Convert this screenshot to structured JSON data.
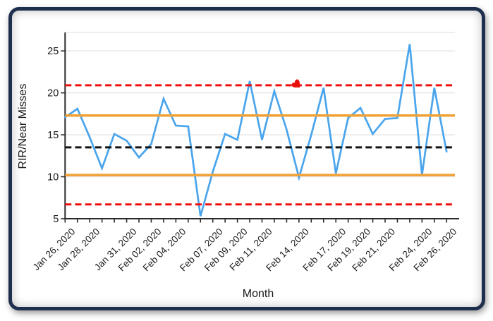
{
  "frame": {
    "border_color": "#1e2f4d",
    "background": "#ffffff"
  },
  "axis": {
    "line_color": "#2b2b2b",
    "grid_color": "#e8e8e8",
    "text_color": "#1b1b1b"
  },
  "chart_data": {
    "type": "line",
    "title": "",
    "xlabel": "Month",
    "ylabel": "RIR/Near Misses",
    "ylim": [
      5,
      27.2
    ],
    "yticks": [
      5,
      10,
      15,
      20,
      25
    ],
    "grid": true,
    "legend": "none",
    "n_points": 32,
    "x_tick_labels": [
      {
        "index": 0,
        "label": "Jan 26, 2020"
      },
      {
        "index": 2,
        "label": "Jan 28, 2020"
      },
      {
        "index": 5,
        "label": "Jan 31, 2020"
      },
      {
        "index": 7,
        "label": "Feb 02, 2020"
      },
      {
        "index": 9,
        "label": "Feb 04, 2020"
      },
      {
        "index": 12,
        "label": "Feb 07, 2020"
      },
      {
        "index": 14,
        "label": "Feb 09, 2020"
      },
      {
        "index": 16,
        "label": "Feb 11, 2020"
      },
      {
        "index": 19,
        "label": "Feb 14, 2020"
      },
      {
        "index": 22,
        "label": "Feb 17, 2020"
      },
      {
        "index": 24,
        "label": "Feb 19, 2020"
      },
      {
        "index": 26,
        "label": "Feb 21, 2020"
      },
      {
        "index": 29,
        "label": "Feb 24, 2020"
      },
      {
        "index": 31,
        "label": "Feb 26, 2020"
      }
    ],
    "series": [
      {
        "name": "rir-near-misses-daily",
        "color": "#4aa5ec",
        "values": [
          17.1,
          18.1,
          14.7,
          11,
          15.1,
          14.3,
          12.3,
          13.9,
          19.3,
          16.1,
          16,
          5.3,
          10.6,
          15.1,
          14.4,
          21.4,
          14.4,
          20.2,
          15.6,
          9.9,
          15,
          20.6,
          10.4,
          17,
          18.2,
          15.1,
          16.9,
          17,
          25.8,
          10.2,
          20.6,
          13
        ]
      }
    ],
    "reference_lines": [
      {
        "name": "upper-control-limit",
        "value": 20.9,
        "color": "#ed100e",
        "style": "dashed"
      },
      {
        "name": "upper-band",
        "value": 17.3,
        "color": "#f0a135",
        "style": "solid"
      },
      {
        "name": "center-line",
        "value": 13.5,
        "color": "#111111",
        "style": "dashed"
      },
      {
        "name": "lower-band",
        "value": 10.2,
        "color": "#f0a135",
        "style": "solid"
      },
      {
        "name": "lower-control-limit",
        "value": 6.7,
        "color": "#ed100e",
        "style": "dashed"
      }
    ],
    "marker": {
      "name": "special-cause-marker",
      "shape": "heart",
      "x_index": 19,
      "value": 20.9,
      "color": "#e8100c"
    }
  }
}
